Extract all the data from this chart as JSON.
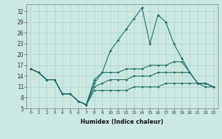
{
  "xlabel": "Humidex (Indice chaleur)",
  "background_color": "#cce8e4",
  "line_color": "#1a6b5e",
  "grid_color": "#aacfca",
  "ylim": [
    5,
    34
  ],
  "xlim": [
    -0.5,
    23.5
  ],
  "yticks": [
    5,
    8,
    11,
    14,
    17,
    20,
    23,
    26,
    29,
    32
  ],
  "xticks": [
    0,
    1,
    2,
    3,
    4,
    5,
    6,
    7,
    8,
    9,
    10,
    11,
    12,
    13,
    14,
    15,
    16,
    17,
    18,
    19,
    20,
    21,
    22,
    23
  ],
  "s1": [
    16,
    15,
    13,
    13,
    9,
    9,
    7,
    6,
    10,
    10,
    10,
    10,
    10,
    11,
    11,
    11,
    11,
    12,
    12,
    12,
    12,
    12,
    11,
    11
  ],
  "s2": [
    16,
    15,
    13,
    13,
    9,
    9,
    7,
    6,
    11,
    12,
    13,
    13,
    13,
    14,
    14,
    14,
    15,
    15,
    15,
    15,
    15,
    12,
    12,
    11
  ],
  "s3": [
    16,
    15,
    13,
    13,
    9,
    9,
    7,
    6,
    12,
    15,
    15,
    15,
    16,
    16,
    16,
    17,
    17,
    17,
    18,
    18,
    15,
    12,
    12,
    11
  ],
  "s4": [
    16,
    15,
    13,
    13,
    9,
    9,
    7,
    6,
    13,
    15,
    21,
    24,
    27,
    30,
    33,
    23,
    31,
    29,
    23,
    19,
    15,
    12,
    12,
    11
  ]
}
